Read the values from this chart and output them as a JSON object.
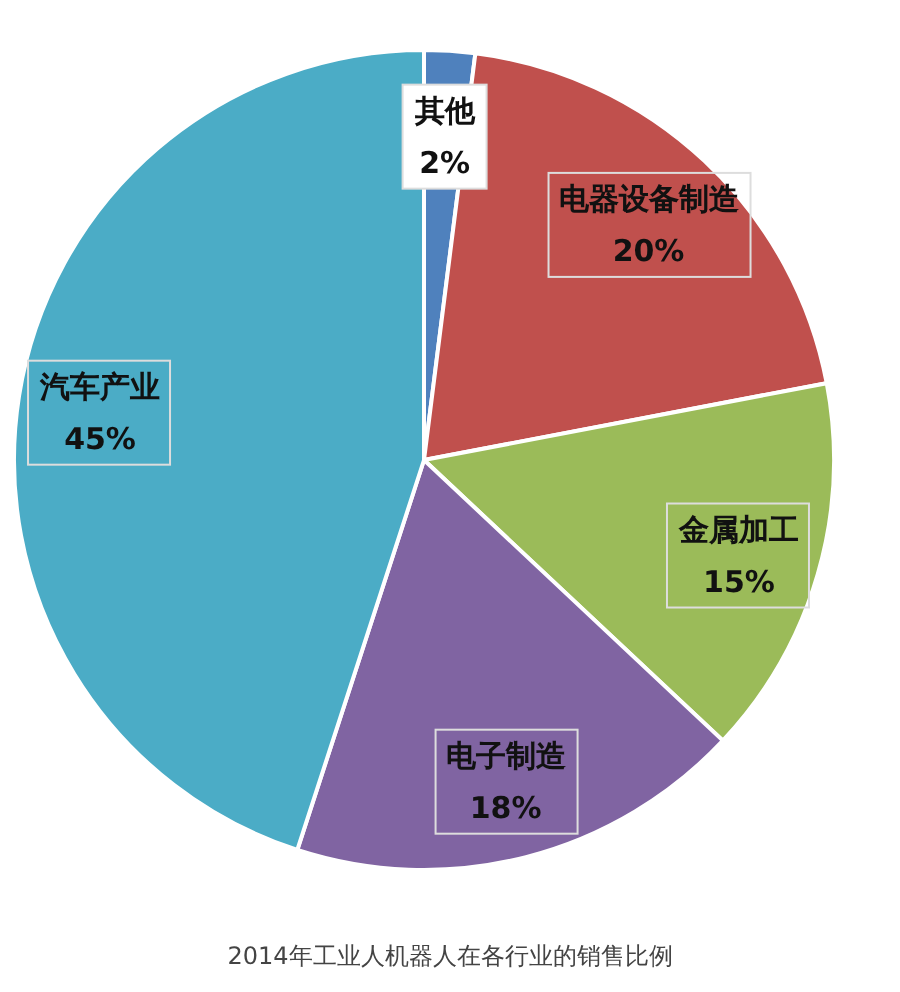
{
  "chart_data": {
    "type": "pie",
    "title": "2014年工业人机器人在各行业的销售比例",
    "categories": [
      "其他",
      "电器设备制造",
      "金属加工",
      "电子制造",
      "汽车产业"
    ],
    "values": [
      2,
      20,
      15,
      18,
      45
    ],
    "value_labels": [
      "2%",
      "20%",
      "15%",
      "18%",
      "45%"
    ],
    "colors": [
      "#4f81bd",
      "#c0504d",
      "#9bbb59",
      "#8064a2",
      "#4bacc6"
    ],
    "legend": false
  }
}
